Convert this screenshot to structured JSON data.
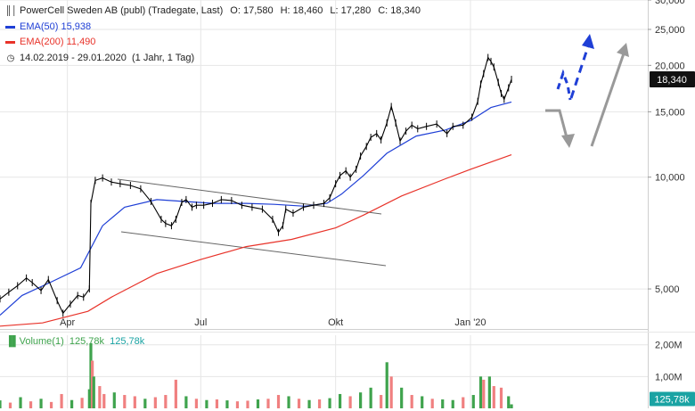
{
  "header": {
    "title": "PowerCell Sweden AB (publ) (Tradegate, Last)",
    "ohlc": {
      "o_label": "O:",
      "o": "17,580",
      "h_label": "H:",
      "h": "18,460",
      "l_label": "L:",
      "l": "17,280",
      "c_label": "C:",
      "c": "18,340"
    },
    "ema50": {
      "label": "EMA(50)",
      "value": "15,938"
    },
    "ema200": {
      "label": "EMA(200)",
      "value": "11,490"
    },
    "range": {
      "dates": "14.02.2019 - 29.01.2020",
      "period": "(1 Jahr, 1 Tag)"
    }
  },
  "volume_legend": {
    "label": "Volume(1)",
    "v1": "125,78k",
    "v2": "125,78k"
  },
  "last_price_tag": "18,340",
  "volume_tag": "125,78k",
  "colors": {
    "price": "#000000",
    "ema50": "#1f3fd6",
    "ema200": "#e8332a",
    "channel": "#666666",
    "up_arrow": "#1f3fd6",
    "arrow_gray": "#999999",
    "vol_up": "#3fa34d",
    "vol_down": "#f08080",
    "grid": "#e6e6e6"
  },
  "chart_data": {
    "type": "line",
    "scale": "log",
    "ylim": [
      3900,
      30000
    ],
    "y_ticks": [
      5000,
      10000,
      15000,
      20000,
      25000,
      30000
    ],
    "y_tick_labels": [
      "5,000",
      "10,000",
      "15,000",
      "20,000",
      "25,000",
      "30,000"
    ],
    "x_tick_labels": [
      "Apr",
      "Jul",
      "Okt",
      "Jan '20"
    ],
    "x_tick_dates": [
      "2019-04-01",
      "2019-07-01",
      "2019-10-01",
      "2020-01-01"
    ],
    "xlim": [
      "2019-02-14",
      "2020-05-01"
    ],
    "series": [
      {
        "name": "EMA(50)",
        "dates": [
          "2019-02-14",
          "2019-03-01",
          "2019-03-20",
          "2019-04-10",
          "2019-04-25",
          "2019-05-10",
          "2019-06-01",
          "2019-06-20",
          "2019-07-10",
          "2019-08-01",
          "2019-08-20",
          "2019-09-10",
          "2019-09-25",
          "2019-10-05",
          "2019-10-20",
          "2019-11-05",
          "2019-11-25",
          "2019-12-15",
          "2020-01-01",
          "2020-01-15",
          "2020-01-29"
        ],
        "values": [
          4250,
          4800,
          5200,
          5700,
          7400,
          8300,
          8700,
          8600,
          8500,
          8500,
          8450,
          8350,
          8500,
          9000,
          10100,
          11600,
          12900,
          13400,
          14200,
          15400,
          15938
        ]
      },
      {
        "name": "EMA(200)",
        "dates": [
          "2019-02-14",
          "2019-03-15",
          "2019-04-15",
          "2019-05-01",
          "2019-06-01",
          "2019-07-01",
          "2019-08-01",
          "2019-09-01",
          "2019-10-01",
          "2019-10-20",
          "2019-11-15",
          "2019-12-15",
          "2020-01-01",
          "2020-01-29"
        ],
        "values": [
          3970,
          4050,
          4350,
          4750,
          5500,
          6000,
          6500,
          6800,
          7300,
          7900,
          8900,
          9900,
          10500,
          11490
        ]
      }
    ],
    "price": {
      "dates": [
        "2019-02-14",
        "2019-02-20",
        "2019-02-26",
        "2019-03-04",
        "2019-03-08",
        "2019-03-14",
        "2019-03-19",
        "2019-03-25",
        "2019-03-29",
        "2019-04-03",
        "2019-04-08",
        "2019-04-12",
        "2019-04-16",
        "2019-04-17",
        "2019-04-20",
        "2019-04-25",
        "2019-05-01",
        "2019-05-07",
        "2019-05-14",
        "2019-05-21",
        "2019-05-28",
        "2019-06-04",
        "2019-06-07",
        "2019-06-11",
        "2019-06-14",
        "2019-06-18",
        "2019-06-21",
        "2019-06-25",
        "2019-06-28",
        "2019-07-03",
        "2019-07-09",
        "2019-07-15",
        "2019-07-22",
        "2019-07-29",
        "2019-08-05",
        "2019-08-12",
        "2019-08-19",
        "2019-08-23",
        "2019-08-26",
        "2019-08-28",
        "2019-09-02",
        "2019-09-09",
        "2019-09-16",
        "2019-09-23",
        "2019-09-27",
        "2019-10-01",
        "2019-10-04",
        "2019-10-08",
        "2019-10-11",
        "2019-10-15",
        "2019-10-18",
        "2019-10-22",
        "2019-10-25",
        "2019-10-29",
        "2019-11-01",
        "2019-11-05",
        "2019-11-08",
        "2019-11-11",
        "2019-11-14",
        "2019-11-18",
        "2019-11-22",
        "2019-11-26",
        "2019-12-02",
        "2019-12-09",
        "2019-12-16",
        "2019-12-20",
        "2019-12-27",
        "2020-01-02",
        "2020-01-06",
        "2020-01-08",
        "2020-01-10",
        "2020-01-13",
        "2020-01-15",
        "2020-01-17",
        "2020-01-20",
        "2020-01-22",
        "2020-01-24",
        "2020-01-27",
        "2020-01-29"
      ],
      "values": [
        4700,
        4900,
        5100,
        5350,
        5200,
        4950,
        5300,
        4650,
        4300,
        4550,
        4800,
        4750,
        5000,
        8500,
        9800,
        9950,
        9700,
        9600,
        9500,
        9300,
        8600,
        7700,
        7500,
        7400,
        7700,
        8550,
        8700,
        8300,
        8400,
        8400,
        8500,
        8700,
        8650,
        8400,
        8300,
        8200,
        7700,
        7100,
        7400,
        8200,
        8000,
        8300,
        8400,
        8500,
        8800,
        9600,
        10100,
        10400,
        10000,
        10500,
        11400,
        12100,
        12800,
        13100,
        12600,
        14000,
        15500,
        14000,
        12500,
        13300,
        13800,
        13500,
        13700,
        13900,
        13100,
        13700,
        13800,
        14500,
        16000,
        17800,
        19000,
        21000,
        20500,
        19800,
        18000,
        16800,
        16200,
        17400,
        18340
      ]
    },
    "volume": {
      "y_ticks": [
        1000000,
        2000000
      ],
      "y_tick_labels": [
        "1,00M",
        "2,00M"
      ],
      "ylim": [
        0,
        2300000
      ],
      "last": 125780,
      "dates": [
        "2019-02-14",
        "2019-02-21",
        "2019-02-28",
        "2019-03-07",
        "2019-03-14",
        "2019-03-21",
        "2019-03-28",
        "2019-04-04",
        "2019-04-11",
        "2019-04-16",
        "2019-04-17",
        "2019-04-18",
        "2019-04-19",
        "2019-04-23",
        "2019-04-26",
        "2019-05-03",
        "2019-05-10",
        "2019-05-17",
        "2019-05-24",
        "2019-05-31",
        "2019-06-07",
        "2019-06-14",
        "2019-06-21",
        "2019-06-28",
        "2019-07-05",
        "2019-07-12",
        "2019-07-19",
        "2019-07-26",
        "2019-08-02",
        "2019-08-09",
        "2019-08-16",
        "2019-08-23",
        "2019-08-30",
        "2019-09-06",
        "2019-09-13",
        "2019-09-20",
        "2019-09-27",
        "2019-10-04",
        "2019-10-11",
        "2019-10-18",
        "2019-10-25",
        "2019-11-01",
        "2019-11-05",
        "2019-11-08",
        "2019-11-15",
        "2019-11-22",
        "2019-11-29",
        "2019-12-06",
        "2019-12-13",
        "2019-12-20",
        "2019-12-27",
        "2020-01-03",
        "2020-01-08",
        "2020-01-10",
        "2020-01-14",
        "2020-01-17",
        "2020-01-22",
        "2020-01-27",
        "2020-01-29"
      ],
      "values": [
        250000,
        180000,
        350000,
        220000,
        300000,
        200000,
        450000,
        260000,
        330000,
        600000,
        2050000,
        1500000,
        1000000,
        700000,
        450000,
        500000,
        420000,
        380000,
        300000,
        350000,
        420000,
        900000,
        380000,
        300000,
        260000,
        280000,
        250000,
        220000,
        240000,
        280000,
        300000,
        420000,
        380000,
        300000,
        260000,
        280000,
        320000,
        450000,
        380000,
        500000,
        650000,
        420000,
        1450000,
        1000000,
        650000,
        420000,
        380000,
        300000,
        280000,
        260000,
        350000,
        420000,
        1000000,
        900000,
        1000000,
        700000,
        650000,
        380000,
        125780
      ],
      "up": [
        1,
        0,
        1,
        0,
        1,
        0,
        0,
        1,
        0,
        1,
        1,
        0,
        1,
        0,
        0,
        1,
        0,
        0,
        1,
        0,
        0,
        0,
        1,
        0,
        1,
        0,
        1,
        0,
        0,
        1,
        0,
        0,
        1,
        0,
        1,
        0,
        1,
        1,
        0,
        1,
        1,
        0,
        1,
        0,
        1,
        0,
        1,
        0,
        1,
        1,
        0,
        1,
        1,
        0,
        1,
        0,
        0,
        1,
        1
      ]
    }
  }
}
